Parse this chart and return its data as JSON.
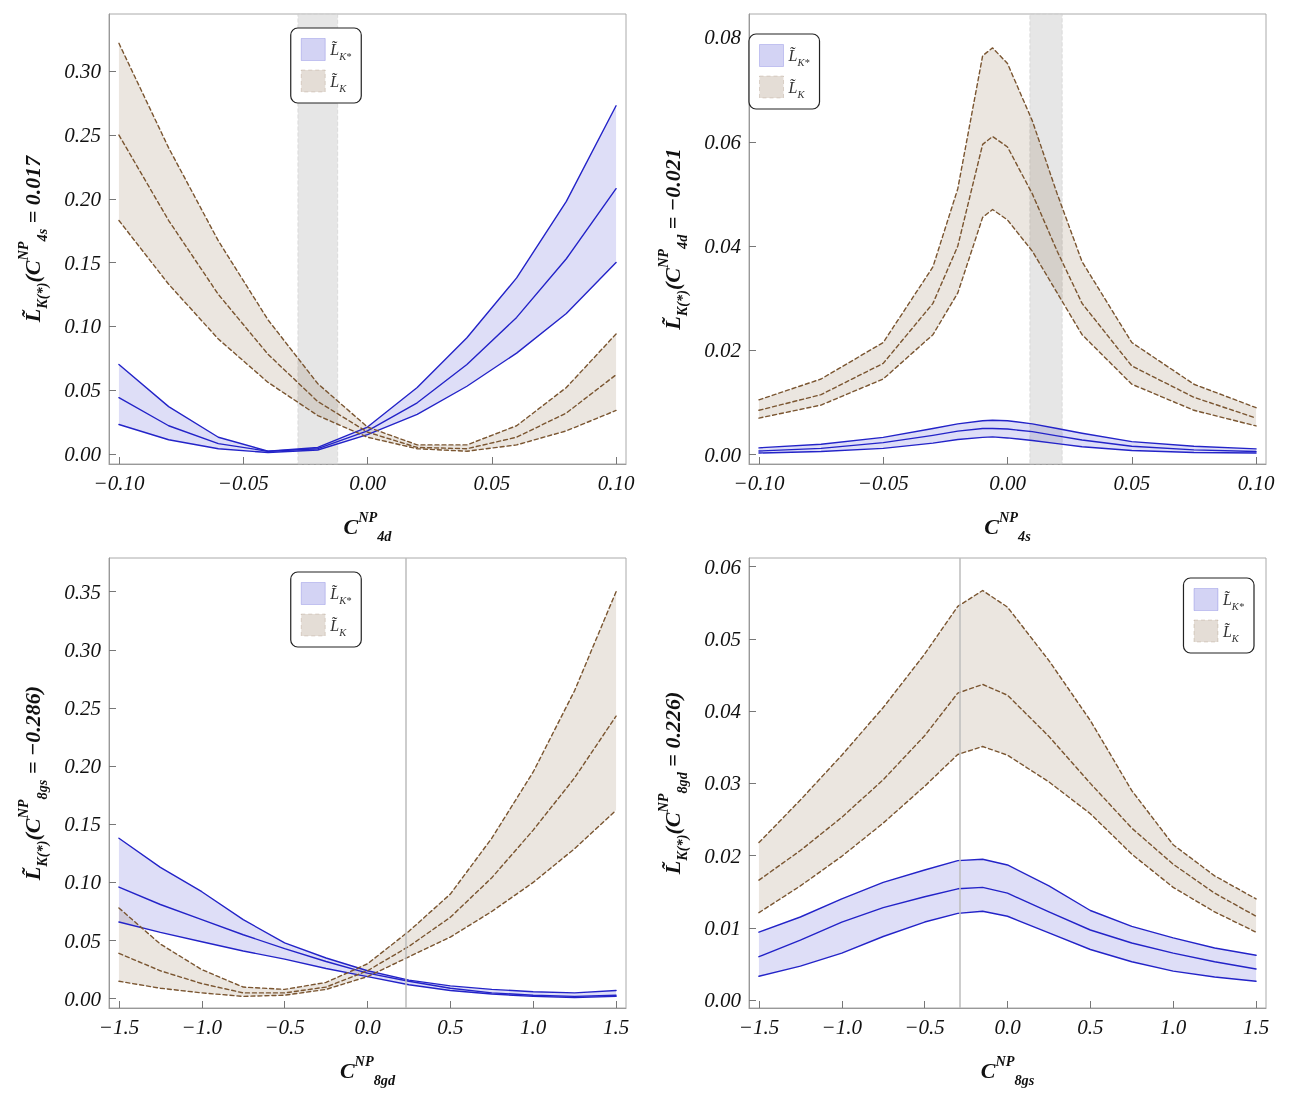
{
  "chart_data": [
    {
      "type": "line",
      "xlabel": "C$^{NP}$$_{4d}$",
      "ylabel": "L̃$_{K(*)}$(C$^{NP}$$_{4s}$ = 0.017",
      "legend": "top",
      "marker": "none",
      "x": [
        -0.1,
        -0.08,
        -0.06,
        -0.04,
        -0.02,
        0,
        0.02,
        0.04,
        0.06,
        0.08,
        0.1
      ],
      "xlim": [
        -0.104,
        0.104
      ],
      "ylim": [
        -0.008,
        0.345
      ],
      "xticks": [
        {
          "value": -0.1,
          "label": "−0.10"
        },
        {
          "value": -0.05,
          "label": "−0.05"
        },
        {
          "value": 0,
          "label": "0.00"
        },
        {
          "value": 0.05,
          "label": "0.05"
        },
        {
          "value": 0.1,
          "label": "0.10"
        }
      ],
      "yticks": [
        {
          "value": 0,
          "label": "0.00"
        },
        {
          "value": 0.05,
          "label": "0.05"
        },
        {
          "value": 0.1,
          "label": "0.10"
        },
        {
          "value": 0.15,
          "label": "0.15"
        },
        {
          "value": 0.2,
          "label": "0.20"
        },
        {
          "value": 0.25,
          "label": "0.25"
        },
        {
          "value": 0.3,
          "label": "0.30"
        }
      ],
      "bands": [
        {
          "axis": "x",
          "from": -0.028,
          "to": -0.012,
          "color": "#d6d6d6"
        }
      ],
      "series": [
        {
          "name": "L̃$_{K*}$",
          "color": "#2323c8",
          "line_style": "solid",
          "values": [
            0.044,
            0.022,
            0.008,
            0.002,
            0.004,
            0.018,
            0.04,
            0.07,
            0.107,
            0.153,
            0.208
          ],
          "upper": [
            0.07,
            0.037,
            0.013,
            0.002,
            0.005,
            0.021,
            0.052,
            0.091,
            0.138,
            0.198,
            0.273
          ],
          "lower": [
            0.023,
            0.011,
            0.004,
            0.001,
            0.003,
            0.015,
            0.031,
            0.053,
            0.079,
            0.11,
            0.15
          ]
        },
        {
          "color": "#2323c8",
          "line_style": "solid",
          "values": [
            0.07,
            0.037,
            0.013,
            0.002,
            0.005,
            0.021,
            0.052,
            0.091,
            0.138,
            0.198,
            0.273
          ]
        },
        {
          "color": "#2323c8",
          "line_style": "solid",
          "values": [
            0.023,
            0.011,
            0.004,
            0.001,
            0.003,
            0.015,
            0.031,
            0.053,
            0.079,
            0.11,
            0.15
          ]
        },
        {
          "name": "L̃$_{K}$",
          "color": "#7a5530",
          "line_style": "dashed",
          "values": [
            0.25,
            0.183,
            0.125,
            0.078,
            0.041,
            0.017,
            0.005,
            0.004,
            0.013,
            0.032,
            0.062
          ],
          "upper": [
            0.322,
            0.24,
            0.167,
            0.105,
            0.055,
            0.021,
            0.007,
            0.007,
            0.022,
            0.052,
            0.094
          ],
          "lower": [
            0.183,
            0.133,
            0.09,
            0.056,
            0.03,
            0.013,
            0.004,
            0.002,
            0.007,
            0.018,
            0.034
          ]
        },
        {
          "color": "#7a5530",
          "line_style": "dashed",
          "values": [
            0.322,
            0.24,
            0.167,
            0.105,
            0.055,
            0.021,
            0.007,
            0.007,
            0.022,
            0.052,
            0.094
          ]
        },
        {
          "color": "#7a5530",
          "line_style": "dashed",
          "values": [
            0.183,
            0.133,
            0.09,
            0.056,
            0.03,
            0.013,
            0.004,
            0.002,
            0.007,
            0.018,
            0.034
          ]
        }
      ]
    },
    {
      "type": "line",
      "xlabel": "C$^{NP}$$_{4s}$",
      "ylabel": "L̃$_{K(*)}$(C$^{NP}$$_{4d}$ = −0.021",
      "legend": "top left",
      "marker": "none",
      "x": [
        -0.1,
        -0.075,
        -0.05,
        -0.03,
        -0.02,
        -0.01,
        -0.006,
        0,
        0.01,
        0.02,
        0.03,
        0.05,
        0.075,
        0.1
      ],
      "xlim": [
        -0.104,
        0.104
      ],
      "ylim": [
        -0.0018,
        0.0845
      ],
      "xticks": [
        {
          "value": -0.1,
          "label": "−0.10"
        },
        {
          "value": -0.05,
          "label": "−0.05"
        },
        {
          "value": 0,
          "label": "0.00"
        },
        {
          "value": 0.05,
          "label": "0.05"
        },
        {
          "value": 0.1,
          "label": "0.10"
        }
      ],
      "yticks": [
        {
          "value": 0,
          "label": "0.00"
        },
        {
          "value": 0.02,
          "label": "0.02"
        },
        {
          "value": 0.04,
          "label": "0.04"
        },
        {
          "value": 0.06,
          "label": "0.06"
        },
        {
          "value": 0.08,
          "label": "0.08"
        }
      ],
      "bands": [
        {
          "axis": "x",
          "from": 0.009,
          "to": 0.022,
          "color": "#d6d6d6"
        }
      ],
      "series": [
        {
          "name": "L̃$_{K*}$",
          "color": "#2323c8",
          "line_style": "solid",
          "values": [
            0.0007,
            0.0012,
            0.0023,
            0.0037,
            0.0045,
            0.005,
            0.005,
            0.0049,
            0.0044,
            0.0036,
            0.0028,
            0.0016,
            0.0009,
            0.0006
          ],
          "upper": [
            0.0013,
            0.002,
            0.0033,
            0.005,
            0.0059,
            0.0065,
            0.0066,
            0.0065,
            0.0059,
            0.005,
            0.0041,
            0.0025,
            0.0016,
            0.0011
          ],
          "lower": [
            0.0003,
            0.0006,
            0.0012,
            0.0022,
            0.0029,
            0.0033,
            0.0034,
            0.0032,
            0.0027,
            0.0021,
            0.0015,
            0.0008,
            0.0004,
            0.0003
          ]
        },
        {
          "color": "#2323c8",
          "line_style": "solid",
          "values": [
            0.0013,
            0.002,
            0.0033,
            0.005,
            0.0059,
            0.0065,
            0.0066,
            0.0065,
            0.0059,
            0.005,
            0.0041,
            0.0025,
            0.0016,
            0.0011
          ]
        },
        {
          "color": "#2323c8",
          "line_style": "solid",
          "values": [
            0.0003,
            0.0006,
            0.0012,
            0.0022,
            0.0029,
            0.0033,
            0.0034,
            0.0032,
            0.0027,
            0.0021,
            0.0015,
            0.0008,
            0.0004,
            0.0003
          ]
        },
        {
          "name": "L̃$_{K}$",
          "color": "#7a5530",
          "line_style": "dashed",
          "values": [
            0.0085,
            0.0115,
            0.0175,
            0.029,
            0.04,
            0.0595,
            0.061,
            0.059,
            0.05,
            0.039,
            0.029,
            0.017,
            0.011,
            0.007
          ],
          "upper": [
            0.0105,
            0.0145,
            0.0215,
            0.036,
            0.051,
            0.0765,
            0.078,
            0.075,
            0.064,
            0.05,
            0.037,
            0.0215,
            0.0135,
            0.009
          ],
          "lower": [
            0.007,
            0.0095,
            0.0145,
            0.023,
            0.031,
            0.0455,
            0.047,
            0.045,
            0.039,
            0.031,
            0.023,
            0.0135,
            0.0085,
            0.0055
          ]
        },
        {
          "color": "#7a5530",
          "line_style": "dashed",
          "values": [
            0.0105,
            0.0145,
            0.0215,
            0.036,
            0.051,
            0.0765,
            0.078,
            0.075,
            0.064,
            0.05,
            0.037,
            0.0215,
            0.0135,
            0.009
          ]
        },
        {
          "color": "#7a5530",
          "line_style": "dashed",
          "values": [
            0.007,
            0.0095,
            0.0145,
            0.023,
            0.031,
            0.0455,
            0.047,
            0.045,
            0.039,
            0.031,
            0.023,
            0.0135,
            0.0085,
            0.0055
          ]
        }
      ]
    },
    {
      "type": "line",
      "xlabel": "C$^{NP}$$_{8gd}$",
      "ylabel": "L̃$_{K(*)}$(C$^{NP}$$_{8gs}$ = −0.286)",
      "legend": "top",
      "marker": "none",
      "x": [
        -1.5,
        -1.25,
        -1,
        -0.75,
        -0.5,
        -0.25,
        0,
        0.25,
        0.5,
        0.75,
        1,
        1.25,
        1.5
      ],
      "xlim": [
        -1.56,
        1.56
      ],
      "ylim": [
        -0.008,
        0.379
      ],
      "xticks": [
        {
          "value": -1.5,
          "label": "−1.5"
        },
        {
          "value": -1,
          "label": "−1.0"
        },
        {
          "value": -0.5,
          "label": "−0.5"
        },
        {
          "value": 0,
          "label": "0.0"
        },
        {
          "value": 0.5,
          "label": "0.5"
        },
        {
          "value": 1,
          "label": "1.0"
        },
        {
          "value": 1.5,
          "label": "1.5"
        }
      ],
      "yticks": [
        {
          "value": 0,
          "label": "0.00"
        },
        {
          "value": 0.05,
          "label": "0.05"
        },
        {
          "value": 0.1,
          "label": "0.10"
        },
        {
          "value": 0.15,
          "label": "0.15"
        },
        {
          "value": 0.2,
          "label": "0.20"
        },
        {
          "value": 0.25,
          "label": "0.25"
        },
        {
          "value": 0.3,
          "label": "0.30"
        },
        {
          "value": 0.35,
          "label": "0.35"
        }
      ],
      "ref_lines": [
        {
          "axis": "x",
          "value": 0.226,
          "color": "#bdbdbd"
        }
      ],
      "series": [
        {
          "name": "L̃$_{K*}$",
          "color": "#2323c8",
          "line_style": "solid",
          "values": [
            0.096,
            0.081,
            0.068,
            0.055,
            0.043,
            0.032,
            0.022,
            0.015,
            0.009,
            0.005,
            0.003,
            0.002,
            0.003
          ],
          "upper": [
            0.138,
            0.113,
            0.092,
            0.068,
            0.048,
            0.035,
            0.024,
            0.016,
            0.011,
            0.008,
            0.006,
            0.005,
            0.007
          ],
          "lower": [
            0.066,
            0.057,
            0.049,
            0.041,
            0.034,
            0.026,
            0.019,
            0.012,
            0.007,
            0.004,
            0.002,
            0.001,
            0.002
          ]
        },
        {
          "color": "#2323c8",
          "line_style": "solid",
          "values": [
            0.138,
            0.113,
            0.092,
            0.068,
            0.048,
            0.035,
            0.024,
            0.016,
            0.011,
            0.008,
            0.006,
            0.005,
            0.007
          ]
        },
        {
          "color": "#2323c8",
          "line_style": "solid",
          "values": [
            0.066,
            0.057,
            0.049,
            0.041,
            0.034,
            0.026,
            0.019,
            0.012,
            0.007,
            0.004,
            0.002,
            0.001,
            0.002
          ]
        },
        {
          "name": "L̃$_{K}$",
          "color": "#7a5530",
          "line_style": "dashed",
          "values": [
            0.039,
            0.024,
            0.013,
            0.005,
            0.005,
            0.01,
            0.024,
            0.045,
            0.07,
            0.104,
            0.145,
            0.19,
            0.243
          ],
          "upper": [
            0.078,
            0.047,
            0.025,
            0.01,
            0.008,
            0.014,
            0.03,
            0.058,
            0.09,
            0.138,
            0.195,
            0.265,
            0.35
          ],
          "lower": [
            0.015,
            0.009,
            0.005,
            0.002,
            0.003,
            0.008,
            0.019,
            0.036,
            0.053,
            0.075,
            0.1,
            0.129,
            0.162
          ]
        },
        {
          "color": "#7a5530",
          "line_style": "dashed",
          "values": [
            0.078,
            0.047,
            0.025,
            0.01,
            0.008,
            0.014,
            0.03,
            0.058,
            0.09,
            0.138,
            0.195,
            0.265,
            0.35
          ]
        },
        {
          "color": "#7a5530",
          "line_style": "dashed",
          "values": [
            0.015,
            0.009,
            0.005,
            0.002,
            0.003,
            0.008,
            0.019,
            0.036,
            0.053,
            0.075,
            0.1,
            0.129,
            0.162
          ]
        }
      ]
    },
    {
      "type": "line",
      "xlabel": "C$^{NP}$$_{8gs}$",
      "ylabel": "L̃$_{K(*)}$(C$^{NP}$$_{8gd}$ = 0.226)",
      "legend": "top right",
      "marker": "none",
      "x": [
        -1.5,
        -1.25,
        -1,
        -0.75,
        -0.5,
        -0.3,
        -0.15,
        0,
        0.25,
        0.5,
        0.75,
        1,
        1.25,
        1.5
      ],
      "xlim": [
        -1.56,
        1.56
      ],
      "ylim": [
        -0.0011,
        0.0612
      ],
      "xticks": [
        {
          "value": -1.5,
          "label": "−1.5"
        },
        {
          "value": -1,
          "label": "−1.0"
        },
        {
          "value": -0.5,
          "label": "−0.5"
        },
        {
          "value": 0,
          "label": "0.0"
        },
        {
          "value": 0.5,
          "label": "0.5"
        },
        {
          "value": 1,
          "label": "1.0"
        },
        {
          "value": 1.5,
          "label": "1.5"
        }
      ],
      "yticks": [
        {
          "value": 0,
          "label": "0.00"
        },
        {
          "value": 0.01,
          "label": "0.01"
        },
        {
          "value": 0.02,
          "label": "0.02"
        },
        {
          "value": 0.03,
          "label": "0.03"
        },
        {
          "value": 0.04,
          "label": "0.04"
        },
        {
          "value": 0.05,
          "label": "0.05"
        },
        {
          "value": 0.06,
          "label": "0.06"
        }
      ],
      "ref_lines": [
        {
          "axis": "x",
          "value": -0.286,
          "color": "#bdbdbd"
        }
      ],
      "series": [
        {
          "name": "L̃$_{K*}$",
          "color": "#2323c8",
          "line_style": "solid",
          "values": [
            0.006,
            0.0083,
            0.0108,
            0.0128,
            0.0143,
            0.0154,
            0.0156,
            0.0148,
            0.0122,
            0.0097,
            0.0079,
            0.0065,
            0.0053,
            0.0043
          ],
          "upper": [
            0.0094,
            0.0115,
            0.014,
            0.0163,
            0.018,
            0.0193,
            0.0195,
            0.0187,
            0.0158,
            0.0124,
            0.0102,
            0.0086,
            0.0072,
            0.0062
          ],
          "lower": [
            0.0033,
            0.0047,
            0.0065,
            0.0088,
            0.0108,
            0.012,
            0.0123,
            0.0116,
            0.0093,
            0.007,
            0.0053,
            0.004,
            0.0032,
            0.0026
          ]
        },
        {
          "color": "#2323c8",
          "line_style": "solid",
          "values": [
            0.0094,
            0.0115,
            0.014,
            0.0163,
            0.018,
            0.0193,
            0.0195,
            0.0187,
            0.0158,
            0.0124,
            0.0102,
            0.0086,
            0.0072,
            0.0062
          ]
        },
        {
          "color": "#2323c8",
          "line_style": "solid",
          "values": [
            0.0033,
            0.0047,
            0.0065,
            0.0088,
            0.0108,
            0.012,
            0.0123,
            0.0116,
            0.0093,
            0.007,
            0.0053,
            0.004,
            0.0032,
            0.0026
          ]
        },
        {
          "name": "L̃$_{K}$",
          "color": "#7a5530",
          "line_style": "dashed",
          "values": [
            0.0166,
            0.0207,
            0.0253,
            0.0305,
            0.0366,
            0.0425,
            0.0437,
            0.0422,
            0.0365,
            0.03,
            0.0238,
            0.0188,
            0.0148,
            0.0116
          ],
          "upper": [
            0.0218,
            0.0277,
            0.0339,
            0.0405,
            0.0479,
            0.0545,
            0.0567,
            0.0544,
            0.047,
            0.0387,
            0.029,
            0.0215,
            0.0172,
            0.014
          ],
          "lower": [
            0.0121,
            0.0158,
            0.0199,
            0.0245,
            0.0296,
            0.034,
            0.0351,
            0.0339,
            0.0302,
            0.0258,
            0.0202,
            0.0156,
            0.0122,
            0.0094
          ]
        },
        {
          "color": "#7a5530",
          "line_style": "dashed",
          "values": [
            0.0218,
            0.0277,
            0.0339,
            0.0405,
            0.0479,
            0.0545,
            0.0567,
            0.0544,
            0.047,
            0.0387,
            0.029,
            0.0215,
            0.0172,
            0.014
          ]
        },
        {
          "color": "#7a5530",
          "line_style": "dashed",
          "values": [
            0.0121,
            0.0158,
            0.0199,
            0.0245,
            0.0296,
            0.034,
            0.0351,
            0.0339,
            0.0302,
            0.0258,
            0.0202,
            0.0156,
            0.0122,
            0.0094
          ]
        }
      ]
    }
  ]
}
